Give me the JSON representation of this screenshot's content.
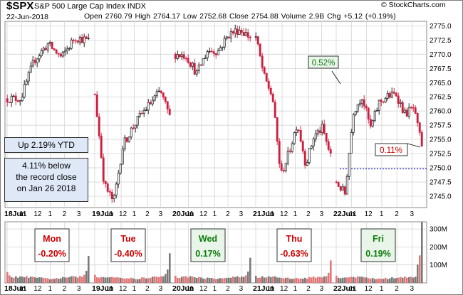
{
  "header": {
    "symbol": "$SPX",
    "index_name": "S&P 500 Large Cap Index",
    "exchange": "INDX",
    "date": "22-Jun-2018",
    "open_label": "Open",
    "open": "2760.79",
    "high_label": "High",
    "high": "2764.17",
    "low_label": "Low",
    "low": "2752.68",
    "close_label": "Close",
    "close": "2754.88",
    "volume_label": "Volume",
    "volume": "2.9B",
    "chg_label": "Chg",
    "chg": "+5.12 (+0.19%)",
    "credit": "© StockCharts.com"
  },
  "annotations": {
    "ytd": "Up 2.19% YTD",
    "record_lines": [
      "4.11% below",
      "the record close",
      "on Jan 26 2018"
    ],
    "pct_high": "0.52%",
    "pct_low": "0.11%",
    "days": [
      {
        "name": "Mon",
        "chg": "-0.20%"
      },
      {
        "name": "Tue",
        "chg": "-0.40%"
      },
      {
        "name": "Wed",
        "chg": "0.17%"
      },
      {
        "name": "Thu",
        "chg": "-0.63%"
      },
      {
        "name": "Fri",
        "chg": "0.19%"
      }
    ]
  },
  "colors": {
    "up": "#111111",
    "down": "#cc1f3f",
    "grid": "#d4d4d4",
    "vol_up": "#7a7a7a",
    "vol_down": "#e07878",
    "positive": "#0f7a0f",
    "negative": "#cc0000",
    "ref_line": "#0000cc"
  },
  "chart_data": [
    {
      "type": "candlestick",
      "title": "$SPX S&P 500 Large Cap Index INDX",
      "y_axis_side": "right",
      "ylim": [
        2743.0,
        2775.8
      ],
      "y_ticks": [
        "2775.0",
        "2772.5",
        "2770.0",
        "2767.5",
        "2765.0",
        "2762.5",
        "2760.0",
        "2757.5",
        "2755.0",
        "2752.5",
        "2750.0",
        "2747.5",
        "2745.0"
      ],
      "reference_line": 2749.8,
      "x_tick_labels": [
        "18Jun",
        "11",
        "12",
        "1",
        "2",
        "3",
        "19Jun",
        "11",
        "12",
        "1",
        "2",
        "3",
        "20Jun",
        "11",
        "12",
        "1",
        "2",
        "3",
        "21Jun",
        "11",
        "12",
        "1",
        "2",
        "3",
        "22Jun",
        "11",
        "12",
        "1",
        "2",
        "3"
      ],
      "day_segments": [
        {
          "label": "18Jun",
          "x": [
            0,
            123
          ],
          "start": 2762.2,
          "pts": [
            2762.2,
            2769.0,
            2771.8,
            2769.4,
            2773.0,
            2772.4
          ]
        },
        {
          "label": "19Jun",
          "x": [
            123,
            236
          ],
          "start": 2763.0,
          "pts": [
            2747.0,
            2744.0,
            2754.0,
            2757.0,
            2759.5,
            2761.5,
            2763.5,
            2759.0
          ]
        },
        {
          "label": "20Jun",
          "x": [
            236,
            349
          ],
          "start": 2770.0,
          "pts": [
            2769.8,
            2766.6,
            2770.6,
            2770.6,
            2773.5,
            2774.4,
            2773.0
          ]
        },
        {
          "label": "21Jun",
          "x": [
            349,
            462
          ],
          "start": 2773.0,
          "pts": [
            2766.0,
            2762.5,
            2748.6,
            2752.8,
            2758.0,
            2750.6,
            2755.6,
            2757.0,
            2752.0
          ]
        },
        {
          "label": "22Jun",
          "x": [
            462,
            592
          ],
          "start": 2747.5,
          "pts": [
            2745.4,
            2760.0,
            2762.6,
            2757.0,
            2761.5,
            2762.6,
            2763.0,
            2759.5,
            2760.5,
            2754.0
          ]
        }
      ]
    },
    {
      "type": "bar",
      "title": "Volume",
      "y_axis_side": "right",
      "y_ticks": [
        "300M",
        "200M",
        "100M"
      ],
      "ylim": [
        0,
        340
      ],
      "day_volume_profile": [
        {
          "label": "18Jun",
          "x": [
            0,
            123
          ],
          "open_spike": 60,
          "close_spike": 150
        },
        {
          "label": "19Jun",
          "x": [
            123,
            236
          ],
          "open_spike": 45,
          "close_spike": 165
        },
        {
          "label": "20Jun",
          "x": [
            236,
            349
          ],
          "open_spike": 40,
          "close_spike": 140
        },
        {
          "label": "21Jun",
          "x": [
            349,
            462
          ],
          "open_spike": 40,
          "close_spike": 125
        },
        {
          "label": "22Jun",
          "x": [
            462,
            592
          ],
          "open_spike": 40,
          "close_spike": 340
        }
      ]
    }
  ]
}
